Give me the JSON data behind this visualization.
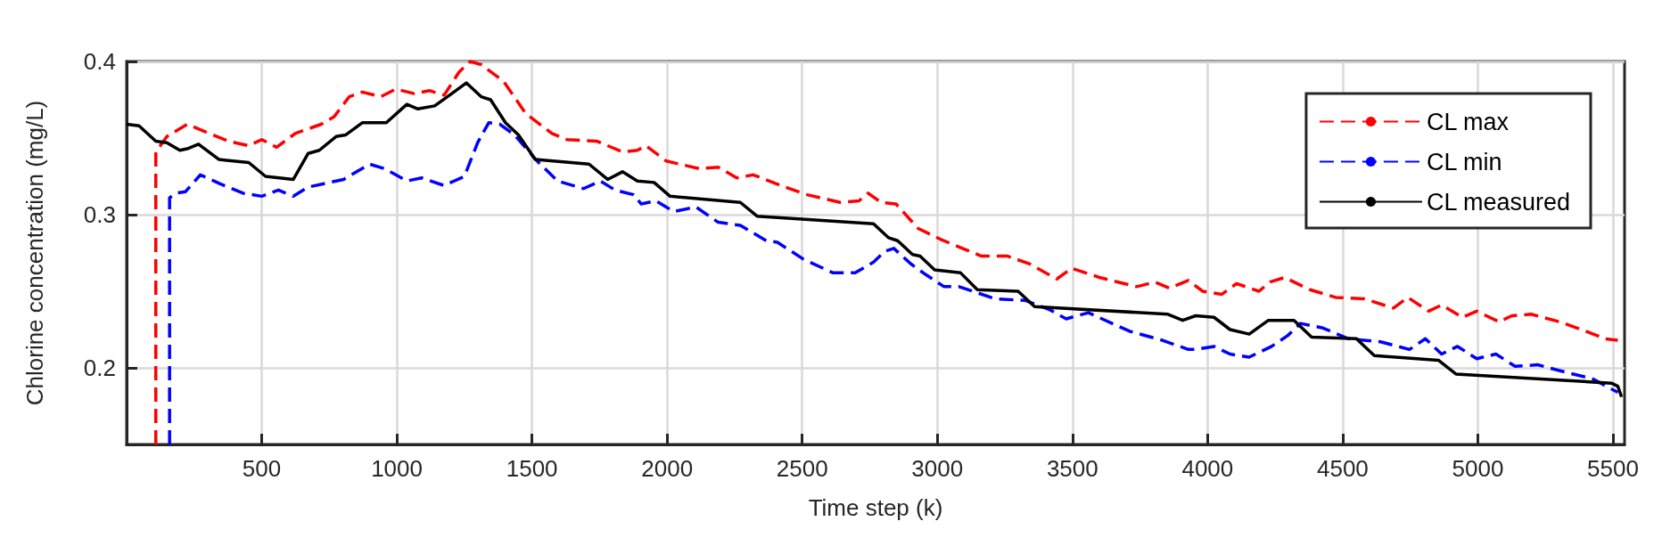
{
  "chart_data": {
    "type": "line",
    "xlabel": "Time step (k)",
    "ylabel": "Chlorine concentration (mg/L)",
    "xlim": [
      0,
      5543
    ],
    "xticks": [
      500,
      1000,
      1500,
      2000,
      2500,
      3000,
      3500,
      4000,
      4500,
      5000,
      5500
    ],
    "ylim": [
      0.15,
      0.4
    ],
    "yticks": [
      0.2,
      0.3,
      0.4
    ],
    "grid": true,
    "legend": "top right",
    "marker": "none",
    "series": [
      {
        "name": "CL max",
        "color": "#ff0000",
        "line_style": "dashed",
        "x": [
          108,
          108,
          149,
          224,
          307,
          376,
          452,
          500,
          555,
          624,
          720,
          768,
          824,
          872,
          941,
          996,
          1064,
          1120,
          1175,
          1230,
          1271,
          1312,
          1395,
          1477,
          1574,
          1629,
          1739,
          1835,
          1890,
          1922,
          1997,
          2120,
          2189,
          2258,
          2319,
          2436,
          2518,
          2641,
          2710,
          2744,
          2792,
          2847,
          2929,
          3011,
          3093,
          3162,
          3258,
          3340,
          3442,
          3497,
          3600,
          3737,
          3806,
          3858,
          3929,
          3982,
          4053,
          4107,
          4190,
          4231,
          4285,
          4379,
          4474,
          4581,
          4688,
          4741,
          4818,
          4866,
          4943,
          4996,
          5079,
          5126,
          5197,
          5304,
          5399,
          5470,
          5518
        ],
        "values": [
          0.15,
          0.341,
          0.351,
          0.359,
          0.353,
          0.348,
          0.345,
          0.349,
          0.344,
          0.353,
          0.359,
          0.364,
          0.377,
          0.38,
          0.377,
          0.382,
          0.379,
          0.381,
          0.378,
          0.393,
          0.4,
          0.398,
          0.387,
          0.366,
          0.353,
          0.349,
          0.348,
          0.341,
          0.342,
          0.345,
          0.335,
          0.33,
          0.331,
          0.324,
          0.326,
          0.318,
          0.313,
          0.308,
          0.309,
          0.314,
          0.308,
          0.307,
          0.291,
          0.284,
          0.278,
          0.273,
          0.273,
          0.268,
          0.258,
          0.265,
          0.259,
          0.253,
          0.256,
          0.252,
          0.257,
          0.25,
          0.248,
          0.255,
          0.25,
          0.256,
          0.259,
          0.251,
          0.246,
          0.245,
          0.239,
          0.246,
          0.237,
          0.241,
          0.233,
          0.237,
          0.23,
          0.234,
          0.235,
          0.23,
          0.224,
          0.219,
          0.218
        ]
      },
      {
        "name": "CL min",
        "color": "#0000ff",
        "line_style": "dashed",
        "x": [
          159,
          159,
          183,
          218,
          273,
          348,
          431,
          500,
          562,
          617,
          672,
          803,
          899,
          955,
          1037,
          1092,
          1175,
          1250,
          1299,
          1340,
          1381,
          1436,
          1519,
          1595,
          1691,
          1753,
          1808,
          1876,
          1904,
          1959,
          2025,
          2107,
          2189,
          2271,
          2367,
          2408,
          2504,
          2614,
          2696,
          2764,
          2805,
          2839,
          2901,
          2956,
          3025,
          3080,
          3148,
          3216,
          3326,
          3415,
          3477,
          3559,
          3710,
          3833,
          3929,
          3953,
          4024,
          4083,
          4154,
          4237,
          4296,
          4344,
          4427,
          4522,
          4640,
          4747,
          4806,
          4866,
          4925,
          4996,
          5067,
          5138,
          5221,
          5328,
          5423,
          5518
        ],
        "values": [
          0.15,
          0.311,
          0.314,
          0.315,
          0.326,
          0.32,
          0.314,
          0.312,
          0.316,
          0.312,
          0.318,
          0.323,
          0.333,
          0.33,
          0.322,
          0.324,
          0.319,
          0.325,
          0.347,
          0.36,
          0.359,
          0.352,
          0.335,
          0.322,
          0.317,
          0.322,
          0.316,
          0.313,
          0.307,
          0.309,
          0.302,
          0.305,
          0.295,
          0.293,
          0.283,
          0.282,
          0.271,
          0.262,
          0.262,
          0.269,
          0.276,
          0.278,
          0.268,
          0.261,
          0.253,
          0.253,
          0.249,
          0.245,
          0.244,
          0.238,
          0.232,
          0.236,
          0.224,
          0.218,
          0.212,
          0.212,
          0.214,
          0.209,
          0.207,
          0.214,
          0.221,
          0.229,
          0.226,
          0.219,
          0.217,
          0.212,
          0.219,
          0.209,
          0.214,
          0.206,
          0.209,
          0.201,
          0.202,
          0.197,
          0.193,
          0.184
        ]
      },
      {
        "name": "CL measured",
        "color": "#000000",
        "line_style": "solid",
        "x": [
          0,
          46,
          108,
          149,
          197,
          224,
          266,
          342,
          452,
          514,
          617,
          672,
          713,
          775,
          810,
          872,
          961,
          1037,
          1078,
          1140,
          1195,
          1257,
          1312,
          1347,
          1402,
          1450,
          1512,
          1711,
          1780,
          1835,
          1890,
          1952,
          2011,
          2271,
          2333,
          2764,
          2819,
          2853,
          2908,
          2936,
          2990,
          3086,
          3148,
          3299,
          3360,
          3853,
          3908,
          3956,
          4024,
          4083,
          4154,
          4225,
          4320,
          4385,
          4551,
          4617,
          4854,
          4919,
          5494,
          5518,
          5532
        ],
        "values": [
          0.359,
          0.358,
          0.348,
          0.347,
          0.342,
          0.343,
          0.346,
          0.336,
          0.334,
          0.325,
          0.323,
          0.34,
          0.342,
          0.351,
          0.352,
          0.36,
          0.36,
          0.372,
          0.369,
          0.371,
          0.378,
          0.386,
          0.377,
          0.375,
          0.36,
          0.352,
          0.336,
          0.333,
          0.323,
          0.328,
          0.322,
          0.321,
          0.312,
          0.308,
          0.299,
          0.294,
          0.285,
          0.283,
          0.274,
          0.273,
          0.264,
          0.262,
          0.251,
          0.25,
          0.24,
          0.235,
          0.231,
          0.234,
          0.233,
          0.225,
          0.222,
          0.231,
          0.231,
          0.22,
          0.219,
          0.208,
          0.205,
          0.196,
          0.19,
          0.188,
          0.181
        ]
      }
    ]
  }
}
